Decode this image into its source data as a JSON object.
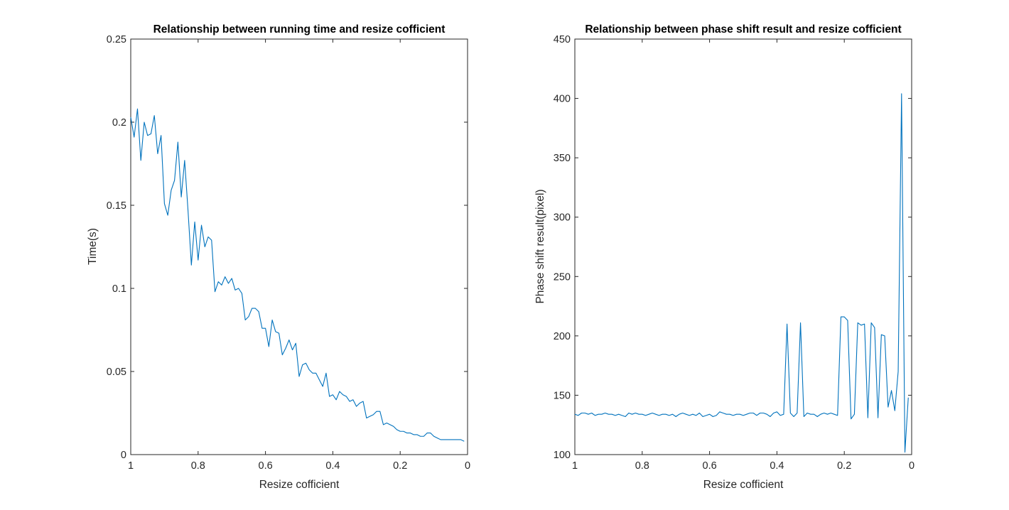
{
  "chart_data": [
    {
      "type": "line",
      "title": "Relationship between running time and resize cofficient",
      "xlabel": "Resize cofficient",
      "ylabel": "Time(s)",
      "xlim": [
        1,
        0
      ],
      "x_reversed": true,
      "ylim": [
        0,
        0.25
      ],
      "xticks": [
        "1",
        "0.8",
        "0.6",
        "0.4",
        "0.2",
        "0"
      ],
      "yticks": [
        "0",
        "0.05",
        "0.1",
        "0.15",
        "0.2",
        "0.25"
      ],
      "grid": false,
      "legend": "none",
      "line_color": "#0072BD",
      "series": [
        {
          "x": [
            1.0,
            0.99,
            0.98,
            0.97,
            0.96,
            0.95,
            0.94,
            0.93,
            0.92,
            0.91,
            0.9,
            0.89,
            0.88,
            0.87,
            0.86,
            0.85,
            0.84,
            0.83,
            0.82,
            0.81,
            0.8,
            0.79,
            0.78,
            0.77,
            0.76,
            0.75,
            0.74,
            0.73,
            0.72,
            0.71,
            0.7,
            0.69,
            0.68,
            0.67,
            0.66,
            0.65,
            0.64,
            0.63,
            0.62,
            0.61,
            0.6,
            0.59,
            0.58,
            0.57,
            0.56,
            0.55,
            0.54,
            0.53,
            0.52,
            0.51,
            0.5,
            0.49,
            0.48,
            0.47,
            0.46,
            0.45,
            0.44,
            0.43,
            0.42,
            0.41,
            0.4,
            0.39,
            0.38,
            0.37,
            0.36,
            0.35,
            0.34,
            0.33,
            0.32,
            0.31,
            0.3,
            0.29,
            0.28,
            0.27,
            0.26,
            0.25,
            0.24,
            0.23,
            0.22,
            0.21,
            0.2,
            0.19,
            0.18,
            0.17,
            0.16,
            0.15,
            0.14,
            0.13,
            0.12,
            0.11,
            0.1,
            0.09,
            0.08,
            0.07,
            0.06,
            0.05,
            0.04,
            0.03,
            0.02,
            0.01
          ],
          "values": [
            0.203,
            0.191,
            0.208,
            0.177,
            0.2,
            0.192,
            0.193,
            0.204,
            0.181,
            0.192,
            0.151,
            0.144,
            0.159,
            0.165,
            0.188,
            0.155,
            0.177,
            0.147,
            0.114,
            0.14,
            0.117,
            0.138,
            0.125,
            0.131,
            0.129,
            0.098,
            0.104,
            0.102,
            0.107,
            0.103,
            0.106,
            0.099,
            0.1,
            0.097,
            0.081,
            0.083,
            0.088,
            0.088,
            0.086,
            0.076,
            0.076,
            0.065,
            0.081,
            0.074,
            0.073,
            0.06,
            0.064,
            0.069,
            0.063,
            0.067,
            0.047,
            0.054,
            0.055,
            0.051,
            0.049,
            0.049,
            0.045,
            0.041,
            0.049,
            0.035,
            0.036,
            0.033,
            0.038,
            0.036,
            0.035,
            0.032,
            0.033,
            0.029,
            0.031,
            0.032,
            0.022,
            0.023,
            0.024,
            0.026,
            0.026,
            0.018,
            0.019,
            0.018,
            0.017,
            0.015,
            0.014,
            0.014,
            0.013,
            0.013,
            0.012,
            0.012,
            0.011,
            0.011,
            0.013,
            0.013,
            0.011,
            0.01,
            0.009,
            0.009,
            0.009,
            0.009,
            0.009,
            0.009,
            0.009,
            0.008
          ]
        }
      ]
    },
    {
      "type": "line",
      "title": "Relationship between phase shift result and resize cofficient",
      "xlabel": "Resize cofficient",
      "ylabel": "Phase shift result(pixel)",
      "xlim": [
        1,
        0
      ],
      "x_reversed": true,
      "ylim": [
        100,
        450
      ],
      "xticks": [
        "1",
        "0.8",
        "0.6",
        "0.4",
        "0.2",
        "0"
      ],
      "yticks": [
        "100",
        "150",
        "200",
        "250",
        "300",
        "350",
        "400",
        "450"
      ],
      "grid": false,
      "legend": "none",
      "line_color": "#0072BD",
      "series": [
        {
          "x": [
            1.0,
            0.99,
            0.98,
            0.97,
            0.96,
            0.95,
            0.94,
            0.93,
            0.92,
            0.91,
            0.9,
            0.89,
            0.88,
            0.87,
            0.86,
            0.85,
            0.84,
            0.83,
            0.82,
            0.81,
            0.8,
            0.79,
            0.78,
            0.77,
            0.76,
            0.75,
            0.74,
            0.73,
            0.72,
            0.71,
            0.7,
            0.69,
            0.68,
            0.67,
            0.66,
            0.65,
            0.64,
            0.63,
            0.62,
            0.61,
            0.6,
            0.59,
            0.58,
            0.57,
            0.56,
            0.55,
            0.54,
            0.53,
            0.52,
            0.51,
            0.5,
            0.49,
            0.48,
            0.47,
            0.46,
            0.45,
            0.44,
            0.43,
            0.42,
            0.41,
            0.4,
            0.39,
            0.38,
            0.37,
            0.36,
            0.35,
            0.34,
            0.33,
            0.32,
            0.31,
            0.3,
            0.29,
            0.28,
            0.27,
            0.26,
            0.25,
            0.24,
            0.23,
            0.22,
            0.21,
            0.2,
            0.19,
            0.18,
            0.17,
            0.16,
            0.15,
            0.14,
            0.13,
            0.12,
            0.11,
            0.1,
            0.09,
            0.08,
            0.07,
            0.06,
            0.05,
            0.04,
            0.03,
            0.02,
            0.01
          ],
          "values": [
            134,
            133,
            135,
            135,
            134,
            135,
            133,
            134,
            134,
            135,
            134,
            134,
            133,
            134,
            133,
            132,
            135,
            134,
            135,
            134,
            134,
            133,
            134,
            135,
            134,
            133,
            134,
            134,
            133,
            134,
            132,
            134,
            135,
            134,
            133,
            134,
            133,
            135,
            132,
            133,
            134,
            132,
            133,
            136,
            135,
            134,
            134,
            133,
            134,
            134,
            133,
            134,
            135,
            135,
            133,
            135,
            135,
            134,
            132,
            135,
            136,
            133,
            134,
            210,
            135,
            132,
            135,
            211,
            132,
            135,
            134,
            134,
            132,
            134,
            135,
            134,
            135,
            134,
            133,
            216,
            216,
            213,
            130,
            134,
            211,
            209,
            210,
            131,
            211,
            207,
            131,
            201,
            200,
            140,
            154,
            137,
            170,
            404,
            102,
            148
          ]
        }
      ]
    }
  ]
}
